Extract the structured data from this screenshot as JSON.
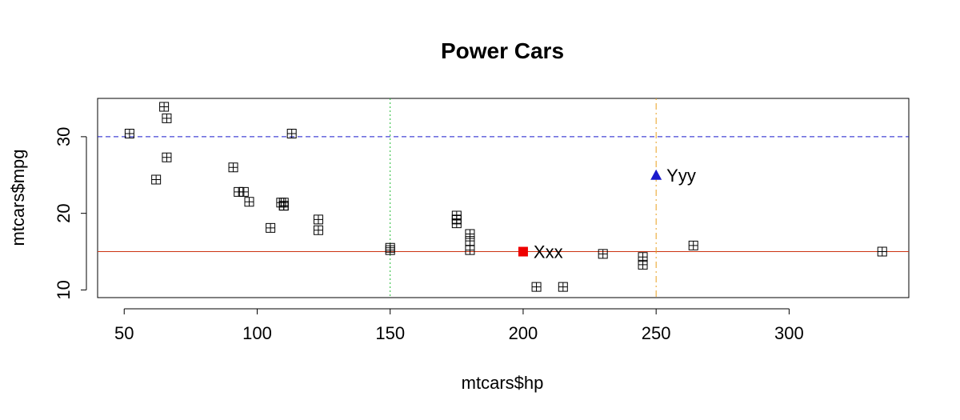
{
  "chart_data": {
    "type": "scatter",
    "title": "Power Cars",
    "xlabel": "mtcars$hp",
    "ylabel": "mtcars$mpg",
    "xlim": [
      40,
      345
    ],
    "ylim": [
      9,
      35
    ],
    "x_ticks": [
      50,
      100,
      150,
      200,
      250,
      300
    ],
    "y_ticks": [
      10,
      20,
      30
    ],
    "grid": false,
    "legend": "none",
    "point_marker": "boxed-plus",
    "points": [
      {
        "x": 110,
        "y": 21.0
      },
      {
        "x": 110,
        "y": 21.0
      },
      {
        "x": 93,
        "y": 22.8
      },
      {
        "x": 110,
        "y": 21.4
      },
      {
        "x": 175,
        "y": 18.7
      },
      {
        "x": 105,
        "y": 18.1
      },
      {
        "x": 245,
        "y": 14.3
      },
      {
        "x": 62,
        "y": 24.4
      },
      {
        "x": 95,
        "y": 22.8
      },
      {
        "x": 123,
        "y": 19.2
      },
      {
        "x": 123,
        "y": 17.8
      },
      {
        "x": 180,
        "y": 16.4
      },
      {
        "x": 180,
        "y": 17.3
      },
      {
        "x": 180,
        "y": 15.2
      },
      {
        "x": 205,
        "y": 10.4
      },
      {
        "x": 215,
        "y": 10.4
      },
      {
        "x": 230,
        "y": 14.7
      },
      {
        "x": 66,
        "y": 32.4
      },
      {
        "x": 52,
        "y": 30.4
      },
      {
        "x": 65,
        "y": 33.9
      },
      {
        "x": 97,
        "y": 21.5
      },
      {
        "x": 150,
        "y": 15.5
      },
      {
        "x": 150,
        "y": 15.2
      },
      {
        "x": 245,
        "y": 13.3
      },
      {
        "x": 175,
        "y": 19.2
      },
      {
        "x": 66,
        "y": 27.3
      },
      {
        "x": 91,
        "y": 26.0
      },
      {
        "x": 113,
        "y": 30.4
      },
      {
        "x": 264,
        "y": 15.8
      },
      {
        "x": 175,
        "y": 19.7
      },
      {
        "x": 335,
        "y": 15.0
      },
      {
        "x": 109,
        "y": 21.4
      }
    ],
    "reference_lines": [
      {
        "orientation": "horizontal",
        "value": 15,
        "color": "#cc3311",
        "style": "solid"
      },
      {
        "orientation": "horizontal",
        "value": 30,
        "color": "#1a1acc",
        "style": "dashed"
      },
      {
        "orientation": "vertical",
        "value": 150,
        "color": "#22bb33",
        "style": "dotted"
      },
      {
        "orientation": "vertical",
        "value": 250,
        "color": "#e8a020",
        "style": "dotdash"
      }
    ],
    "highlights": [
      {
        "x": 200,
        "y": 15,
        "label": "Xxx",
        "shape": "square",
        "color": "#ee0000"
      },
      {
        "x": 250,
        "y": 25,
        "label": "Yyy",
        "shape": "triangle",
        "color": "#1a1acc"
      }
    ]
  }
}
